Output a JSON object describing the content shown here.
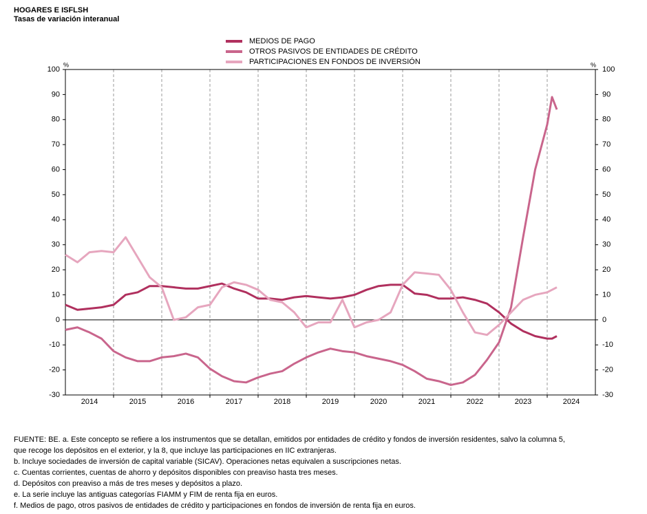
{
  "chart_data": {
    "type": "line",
    "title": "HOGARES E ISFLSH",
    "subtitle": "Tasas de variación interanual",
    "y_unit": "%",
    "x": [
      2014,
      2014.25,
      2014.5,
      2014.75,
      2015,
      2015.25,
      2015.5,
      2015.75,
      2016,
      2016.25,
      2016.5,
      2016.75,
      2017,
      2017.25,
      2017.5,
      2017.75,
      2018,
      2018.25,
      2018.5,
      2018.75,
      2019,
      2019.25,
      2019.5,
      2019.75,
      2020,
      2020.25,
      2020.5,
      2020.75,
      2021,
      2021.25,
      2021.5,
      2021.75,
      2022,
      2022.25,
      2022.5,
      2022.75,
      2023,
      2023.25,
      2023.5,
      2023.75,
      2024,
      2024.1,
      2024.2
    ],
    "series": [
      {
        "name": "MEDIOS DE PAGO",
        "color": "#b0305e",
        "values": [
          6,
          4,
          4.5,
          5,
          6,
          10,
          11,
          13.5,
          13.5,
          13,
          12.5,
          12.5,
          13.5,
          14.5,
          12.5,
          11,
          8.5,
          8.5,
          8,
          9,
          9.5,
          9,
          8.5,
          9,
          10,
          12,
          13.5,
          14,
          14,
          10.5,
          10,
          8.5,
          8.5,
          9,
          8,
          6.5,
          3,
          -1.5,
          -4.5,
          -6.5,
          -7.5,
          -7.5,
          -6.5
        ]
      },
      {
        "name": "OTROS PASIVOS DE ENTIDADES DE CRÉDITO",
        "color": "#c9658c",
        "values": [
          -4,
          -3,
          -5,
          -7.5,
          -12.5,
          -15,
          -16.5,
          -16.5,
          -15,
          -14.5,
          -13.5,
          -15,
          -19.5,
          -22.5,
          -24.5,
          -25,
          -23,
          -21.5,
          -20.5,
          -17.5,
          -15,
          -13,
          -11.5,
          -12.5,
          -13,
          -14.5,
          -15.5,
          -16.5,
          -18,
          -20.5,
          -23.5,
          -24.5,
          -26,
          -25,
          -22,
          -16,
          -9,
          5,
          33,
          60,
          78,
          89,
          84
        ]
      },
      {
        "name": "PARTICIPACIONES EN FONDOS DE INVERSIÓN",
        "color": "#e6a6be",
        "values": [
          26,
          23,
          27,
          27.5,
          27,
          33,
          25,
          17,
          13,
          0,
          1,
          5,
          6,
          13,
          15,
          14,
          12,
          8,
          7,
          3,
          -3,
          -1,
          -1,
          8,
          -3,
          -1,
          0,
          3,
          14,
          19,
          18.5,
          18,
          12,
          3,
          -5,
          -6,
          -2,
          3,
          8,
          10,
          11,
          12,
          13
        ]
      }
    ],
    "xlim": [
      2014,
      2025
    ],
    "xticks": [
      {
        "value": 2014.5,
        "label": "2014"
      },
      {
        "value": 2015.5,
        "label": "2015"
      },
      {
        "value": 2016.5,
        "label": "2016"
      },
      {
        "value": 2017.5,
        "label": "2017"
      },
      {
        "value": 2018.5,
        "label": "2018"
      },
      {
        "value": 2019.5,
        "label": "2019"
      },
      {
        "value": 2020.5,
        "label": "2020"
      },
      {
        "value": 2021.5,
        "label": "2021"
      },
      {
        "value": 2022.5,
        "label": "2022"
      },
      {
        "value": 2023.5,
        "label": "2023"
      },
      {
        "value": 2024.5,
        "label": "2024"
      }
    ],
    "xgrid": [
      2015,
      2016,
      2017,
      2018,
      2019,
      2020,
      2021,
      2022,
      2023,
      2024
    ],
    "ylim": [
      -30,
      100
    ],
    "yticks": [
      -30,
      -20,
      -10,
      0,
      10,
      20,
      30,
      40,
      50,
      60,
      70,
      80,
      90,
      100
    ],
    "legend": "top",
    "notes": [
      "FUENTE: BE.   a. Este concepto se refiere a los instrumentos que se detallan, emitidos por entidades de crédito y fondos de inversión residentes, salvo la columna 5,",
      "que recoge los depósitos en el exterior, y la 8, que incluye las participaciones en IIC extranjeras.",
      "b. Incluye sociedades de inversión de capital variable (SICAV). Operaciones netas equivalen a suscripciones netas.",
      "c. Cuentas corrientes, cuentas de ahorro y depósitos disponibles con preaviso hasta tres meses.",
      "d. Depósitos con preaviso a más de tres meses y depósitos a plazo.",
      "e. La serie incluye las antiguas categorías FIAMM y FIM de renta fija en euros.",
      "f. Medios de pago, otros pasivos de entidades de crédito y participaciones en fondos de inversión de renta fija en euros."
    ]
  }
}
